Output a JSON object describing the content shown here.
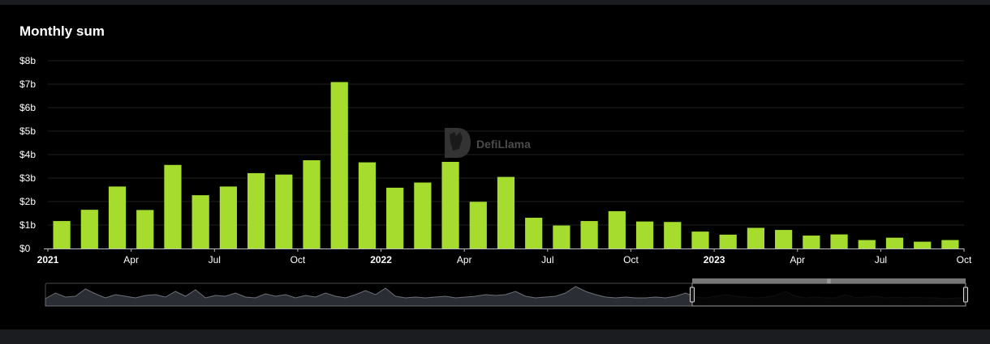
{
  "chart_data": {
    "type": "bar",
    "title": "Monthly sum",
    "watermark": "DefiLlama",
    "bar_color": "#a6dc2e",
    "background": "#000000",
    "grid": true,
    "ylim": [
      0,
      8
    ],
    "y_ticks": [
      "$0",
      "$1b",
      "$2b",
      "$3b",
      "$4b",
      "$5b",
      "$6b",
      "$7b",
      "$8b"
    ],
    "x_ticks": [
      {
        "label": "2021",
        "year": true
      },
      {
        "label": "Apr",
        "year": false
      },
      {
        "label": "Jul",
        "year": false
      },
      {
        "label": "Oct",
        "year": false
      },
      {
        "label": "2022",
        "year": true
      },
      {
        "label": "Apr",
        "year": false
      },
      {
        "label": "Jul",
        "year": false
      },
      {
        "label": "Oct",
        "year": false
      },
      {
        "label": "2023",
        "year": true
      },
      {
        "label": "Apr",
        "year": false
      },
      {
        "label": "Jul",
        "year": false
      },
      {
        "label": "Oct",
        "year": false
      }
    ],
    "categories": [
      "2021-01",
      "2021-02",
      "2021-03",
      "2021-04",
      "2021-05",
      "2021-06",
      "2021-07",
      "2021-08",
      "2021-09",
      "2021-10",
      "2021-11",
      "2021-12",
      "2022-01",
      "2022-02",
      "2022-03",
      "2022-04",
      "2022-05",
      "2022-06",
      "2022-07",
      "2022-08",
      "2022-09",
      "2022-10",
      "2022-11",
      "2022-12",
      "2023-01",
      "2023-02",
      "2023-03",
      "2023-04",
      "2023-05",
      "2023-06",
      "2023-07",
      "2023-08",
      "2023-09"
    ],
    "values": [
      1.17,
      1.65,
      2.64,
      1.64,
      3.56,
      2.27,
      2.64,
      3.21,
      3.15,
      3.76,
      7.09,
      3.67,
      2.59,
      2.81,
      3.69,
      1.99,
      3.05,
      1.31,
      0.98,
      1.17,
      1.59,
      1.15,
      1.13,
      0.72,
      0.59,
      0.88,
      0.79,
      0.55,
      0.6,
      0.36,
      0.46,
      0.29,
      0.36
    ]
  },
  "range_selector": {
    "label": "range selector",
    "handle_grip": "|||",
    "overview_values": [
      0.25,
      0.6,
      0.35,
      0.4,
      0.85,
      0.55,
      0.3,
      0.5,
      0.4,
      0.3,
      0.45,
      0.5,
      0.35,
      0.7,
      0.4,
      0.8,
      0.3,
      0.45,
      0.4,
      0.6,
      0.35,
      0.3,
      0.55,
      0.4,
      0.5,
      0.3,
      0.45,
      0.35,
      0.6,
      0.4,
      0.3,
      0.5,
      0.75,
      0.5,
      0.9,
      0.4,
      0.3,
      0.35,
      0.3,
      0.35,
      0.4,
      0.3,
      0.35,
      0.4,
      0.5,
      0.45,
      0.5,
      0.7,
      0.4,
      0.3,
      0.35,
      0.4,
      0.6,
      1.0,
      0.7,
      0.5,
      0.35,
      0.3,
      0.35,
      0.3,
      0.3,
      0.35,
      0.3,
      0.4,
      0.6,
      0.35,
      0.3,
      0.4,
      0.5,
      0.4,
      0.35,
      0.3,
      0.35,
      0.45,
      0.7,
      0.4,
      0.3,
      0.35,
      0.3,
      0.3,
      0.5,
      0.3,
      0.35,
      0.4,
      0.3,
      0.35,
      0.3,
      0.35,
      0.3,
      0.3,
      0.25,
      0.3,
      0.3
    ]
  }
}
